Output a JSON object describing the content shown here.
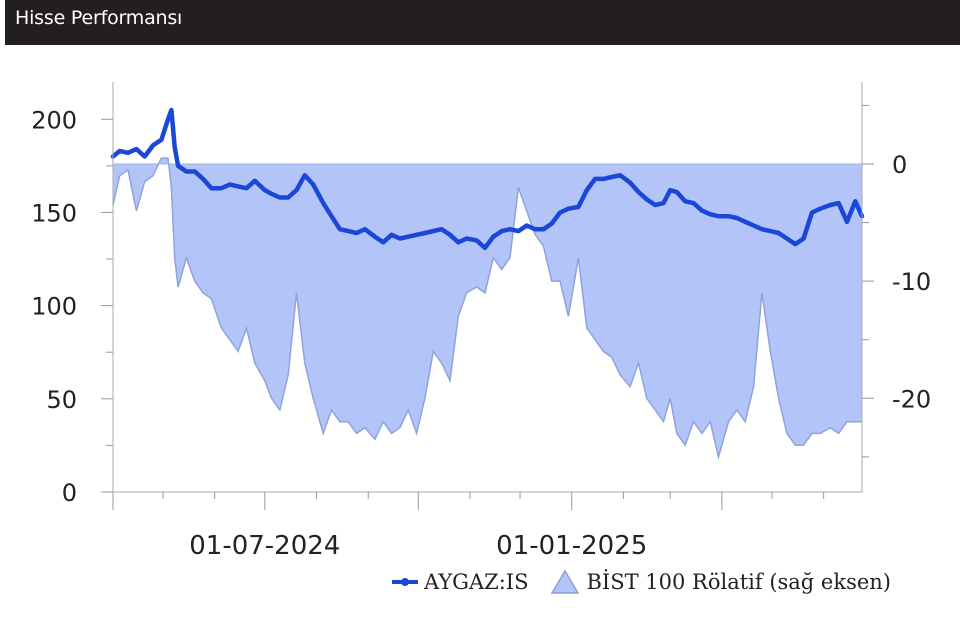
{
  "header": {
    "title": "Hisse Performansı"
  },
  "chart_data": {
    "type": "line",
    "x_labels": [
      "01-07-2024",
      "01-01-2025"
    ],
    "x_range": [
      "2024-04-01",
      "2025-06-24"
    ],
    "left_axis": {
      "ylim": [
        0,
        220
      ],
      "ticks": [
        "0",
        "50",
        "100",
        "150",
        "200"
      ]
    },
    "right_axis": {
      "ylim": [
        -28,
        7
      ],
      "ticks": [
        "0",
        "-10",
        "-20"
      ]
    },
    "grid": false,
    "legend_position": "bottom-right",
    "series": [
      {
        "name": "AYGAZ:IS",
        "type": "line",
        "axis": "left",
        "color": "#1a47d8",
        "x": [
          "2024-04-01",
          "2024-04-05",
          "2024-04-10",
          "2024-04-15",
          "2024-04-20",
          "2024-04-25",
          "2024-04-30",
          "2024-05-04",
          "2024-05-06",
          "2024-05-08",
          "2024-05-10",
          "2024-05-15",
          "2024-05-20",
          "2024-05-25",
          "2024-05-30",
          "2024-06-05",
          "2024-06-10",
          "2024-06-15",
          "2024-06-20",
          "2024-06-25",
          "2024-07-01",
          "2024-07-05",
          "2024-07-10",
          "2024-07-15",
          "2024-07-20",
          "2024-07-25",
          "2024-07-30",
          "2024-08-05",
          "2024-08-10",
          "2024-08-15",
          "2024-08-20",
          "2024-08-25",
          "2024-08-30",
          "2024-09-05",
          "2024-09-10",
          "2024-09-15",
          "2024-09-20",
          "2024-09-25",
          "2024-09-30",
          "2024-10-05",
          "2024-10-10",
          "2024-10-15",
          "2024-10-20",
          "2024-10-25",
          "2024-10-30",
          "2024-11-05",
          "2024-11-10",
          "2024-11-15",
          "2024-11-20",
          "2024-11-25",
          "2024-11-30",
          "2024-12-05",
          "2024-12-10",
          "2024-12-15",
          "2024-12-20",
          "2024-12-25",
          "2024-12-30",
          "2025-01-05",
          "2025-01-10",
          "2025-01-15",
          "2025-01-20",
          "2025-01-25",
          "2025-01-30",
          "2025-02-05",
          "2025-02-10",
          "2025-02-15",
          "2025-02-20",
          "2025-02-25",
          "2025-03-01",
          "2025-03-05",
          "2025-03-10",
          "2025-03-15",
          "2025-03-20",
          "2025-03-25",
          "2025-03-30",
          "2025-04-05",
          "2025-04-10",
          "2025-04-15",
          "2025-04-20",
          "2025-04-25",
          "2025-04-30",
          "2025-05-05",
          "2025-05-10",
          "2025-05-15",
          "2025-05-20",
          "2025-05-25",
          "2025-05-30",
          "2025-06-05",
          "2025-06-10",
          "2025-06-15",
          "2025-06-20",
          "2025-06-24"
        ],
        "values": [
          180,
          183,
          182,
          184,
          180,
          186,
          189,
          200,
          205,
          185,
          175,
          172,
          172,
          168,
          163,
          163,
          165,
          164,
          163,
          167,
          162,
          160,
          158,
          158,
          162,
          170,
          165,
          155,
          148,
          141,
          140,
          139,
          141,
          137,
          134,
          138,
          136,
          137,
          138,
          139,
          140,
          141,
          138,
          134,
          136,
          135,
          131,
          137,
          140,
          141,
          140,
          143,
          141,
          141,
          144,
          150,
          152,
          153,
          162,
          168,
          168,
          169,
          170,
          166,
          161,
          157,
          154,
          155,
          162,
          161,
          156,
          155,
          151,
          149,
          148,
          148,
          147,
          145,
          143,
          141,
          140,
          139,
          136,
          133,
          136,
          150,
          152,
          154,
          155,
          145,
          156,
          148
        ]
      },
      {
        "name": "BİST 100 Rölatif (sağ eksen)",
        "type": "area",
        "axis": "right",
        "color": "#b3c5f8",
        "x": [
          "2024-04-01",
          "2024-04-05",
          "2024-04-10",
          "2024-04-15",
          "2024-04-20",
          "2024-04-25",
          "2024-04-30",
          "2024-05-04",
          "2024-05-06",
          "2024-05-08",
          "2024-05-10",
          "2024-05-15",
          "2024-05-20",
          "2024-05-25",
          "2024-05-30",
          "2024-06-05",
          "2024-06-10",
          "2024-06-15",
          "2024-06-20",
          "2024-06-25",
          "2024-07-01",
          "2024-07-05",
          "2024-07-10",
          "2024-07-15",
          "2024-07-20",
          "2024-07-25",
          "2024-07-30",
          "2024-08-05",
          "2024-08-10",
          "2024-08-15",
          "2024-08-20",
          "2024-08-25",
          "2024-08-30",
          "2024-09-05",
          "2024-09-10",
          "2024-09-15",
          "2024-09-20",
          "2024-09-25",
          "2024-09-30",
          "2024-10-05",
          "2024-10-10",
          "2024-10-15",
          "2024-10-20",
          "2024-10-25",
          "2024-10-30",
          "2024-11-05",
          "2024-11-10",
          "2024-11-15",
          "2024-11-20",
          "2024-11-25",
          "2024-11-30",
          "2024-12-05",
          "2024-12-10",
          "2024-12-15",
          "2024-12-20",
          "2024-12-25",
          "2024-12-30",
          "2025-01-05",
          "2025-01-10",
          "2025-01-15",
          "2025-01-20",
          "2025-01-25",
          "2025-01-30",
          "2025-02-05",
          "2025-02-10",
          "2025-02-15",
          "2025-02-20",
          "2025-02-25",
          "2025-03-01",
          "2025-03-05",
          "2025-03-10",
          "2025-03-15",
          "2025-03-20",
          "2025-03-25",
          "2025-03-30",
          "2025-04-05",
          "2025-04-10",
          "2025-04-15",
          "2025-04-20",
          "2025-04-25",
          "2025-04-30",
          "2025-05-05",
          "2025-05-10",
          "2025-05-15",
          "2025-05-20",
          "2025-05-25",
          "2025-05-30",
          "2025-06-05",
          "2025-06-10",
          "2025-06-15",
          "2025-06-20",
          "2025-06-24"
        ],
        "values": [
          -3.5,
          -1,
          -0.5,
          -4,
          -1.5,
          -1,
          0.5,
          0.5,
          -2,
          -8,
          -10.5,
          -8,
          -10,
          -11,
          -11.5,
          -14,
          -15,
          -16,
          -14,
          -17,
          -18.5,
          -20,
          -21,
          -18,
          -11,
          -17,
          -20,
          -23,
          -21,
          -22,
          -22,
          -23,
          -22.5,
          -23.5,
          -22,
          -23,
          -22.5,
          -21,
          -23,
          -20,
          -16,
          -17,
          -18.5,
          -13,
          -11,
          -10.5,
          -11,
          -8,
          -9,
          -8,
          -2,
          -4,
          -6,
          -7,
          -10,
          -10,
          -13,
          -8,
          -14,
          -15,
          -16,
          -16.5,
          -18,
          -19,
          -17,
          -20,
          -21,
          -22,
          -20,
          -23,
          -24,
          -22,
          -23,
          -22,
          -25,
          -22,
          -21,
          -22,
          -19,
          -11,
          -16,
          -20,
          -23,
          -24,
          -24,
          -23,
          -23,
          -22.5,
          -23,
          -22,
          -22,
          -22
        ]
      }
    ]
  }
}
